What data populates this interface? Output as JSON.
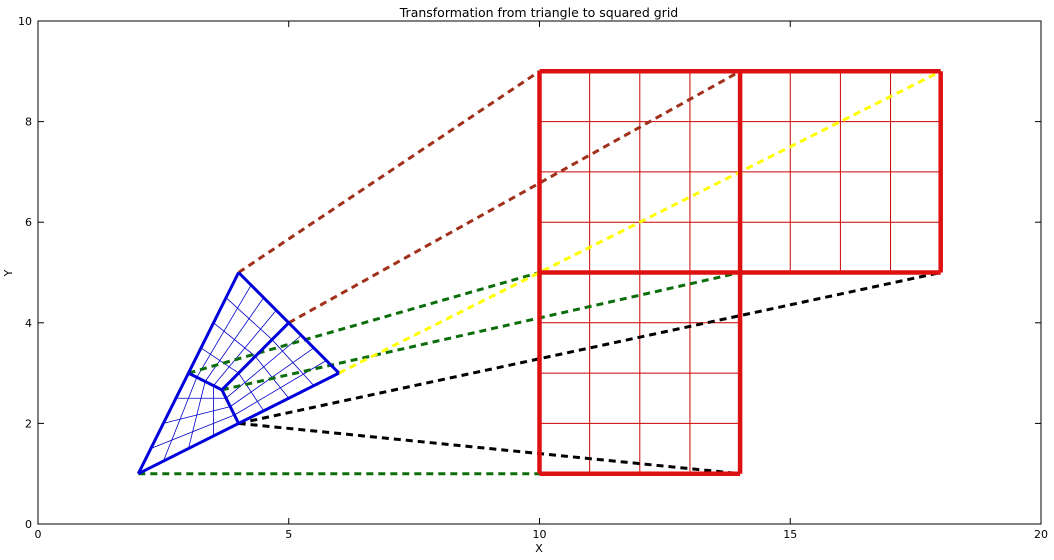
{
  "chart_data": {
    "type": "line",
    "title": "Transformation from triangle to squared grid",
    "xlabel": "X",
    "ylabel": "Y",
    "xlim": [
      0,
      20
    ],
    "ylim": [
      0,
      10
    ],
    "xticks": [
      0,
      5,
      10,
      15,
      20
    ],
    "yticks": [
      0,
      2,
      4,
      6,
      8,
      10
    ],
    "grid": false,
    "colors": {
      "triangle_outline": "#0000dd",
      "triangle_mesh": "#0000cc",
      "square_outline": "#dd1111",
      "square_grid": "#cc0000",
      "dashed_brown": "#a0301a",
      "dashed_green": "#0b6e0b",
      "dashed_yellow": "#ffff00",
      "dashed_black": "#000000"
    },
    "triangle": {
      "vertices": [
        [
          2,
          1
        ],
        [
          4,
          5
        ],
        [
          6,
          3
        ]
      ],
      "centroid": [
        3.667,
        2.667
      ],
      "edge_midpoints": [
        [
          3,
          3
        ],
        [
          5,
          4
        ],
        [
          4,
          2
        ]
      ]
    },
    "squares": {
      "outline_segments": [
        [
          [
            10,
            1
          ],
          [
            10,
            9
          ]
        ],
        [
          [
            14,
            1
          ],
          [
            14,
            9
          ]
        ],
        [
          [
            18,
            5
          ],
          [
            18,
            9
          ]
        ],
        [
          [
            10,
            9
          ],
          [
            18,
            9
          ]
        ],
        [
          [
            10,
            5
          ],
          [
            18,
            5
          ]
        ],
        [
          [
            10,
            1
          ],
          [
            14,
            1
          ]
        ]
      ],
      "grid_step": 1
    },
    "mapping_lines": [
      {
        "color": "dashed_brown",
        "from": [
          4,
          5
        ],
        "to": [
          10,
          9
        ]
      },
      {
        "color": "dashed_brown",
        "from": [
          5,
          4
        ],
        "to": [
          14,
          9
        ]
      },
      {
        "color": "dashed_green",
        "from": [
          3,
          3
        ],
        "to": [
          10,
          5
        ]
      },
      {
        "color": "dashed_green",
        "from": [
          3.667,
          2.667
        ],
        "to": [
          14,
          5
        ]
      },
      {
        "color": "dashed_yellow",
        "from": [
          6,
          3
        ],
        "to": [
          18,
          9
        ]
      },
      {
        "color": "dashed_black",
        "from": [
          4,
          2
        ],
        "to": [
          18,
          5
        ]
      },
      {
        "color": "dashed_black",
        "from": [
          4,
          2
        ],
        "to": [
          14,
          1
        ]
      },
      {
        "color": "dashed_green",
        "from": [
          2,
          1
        ],
        "to": [
          10,
          1
        ]
      }
    ]
  }
}
